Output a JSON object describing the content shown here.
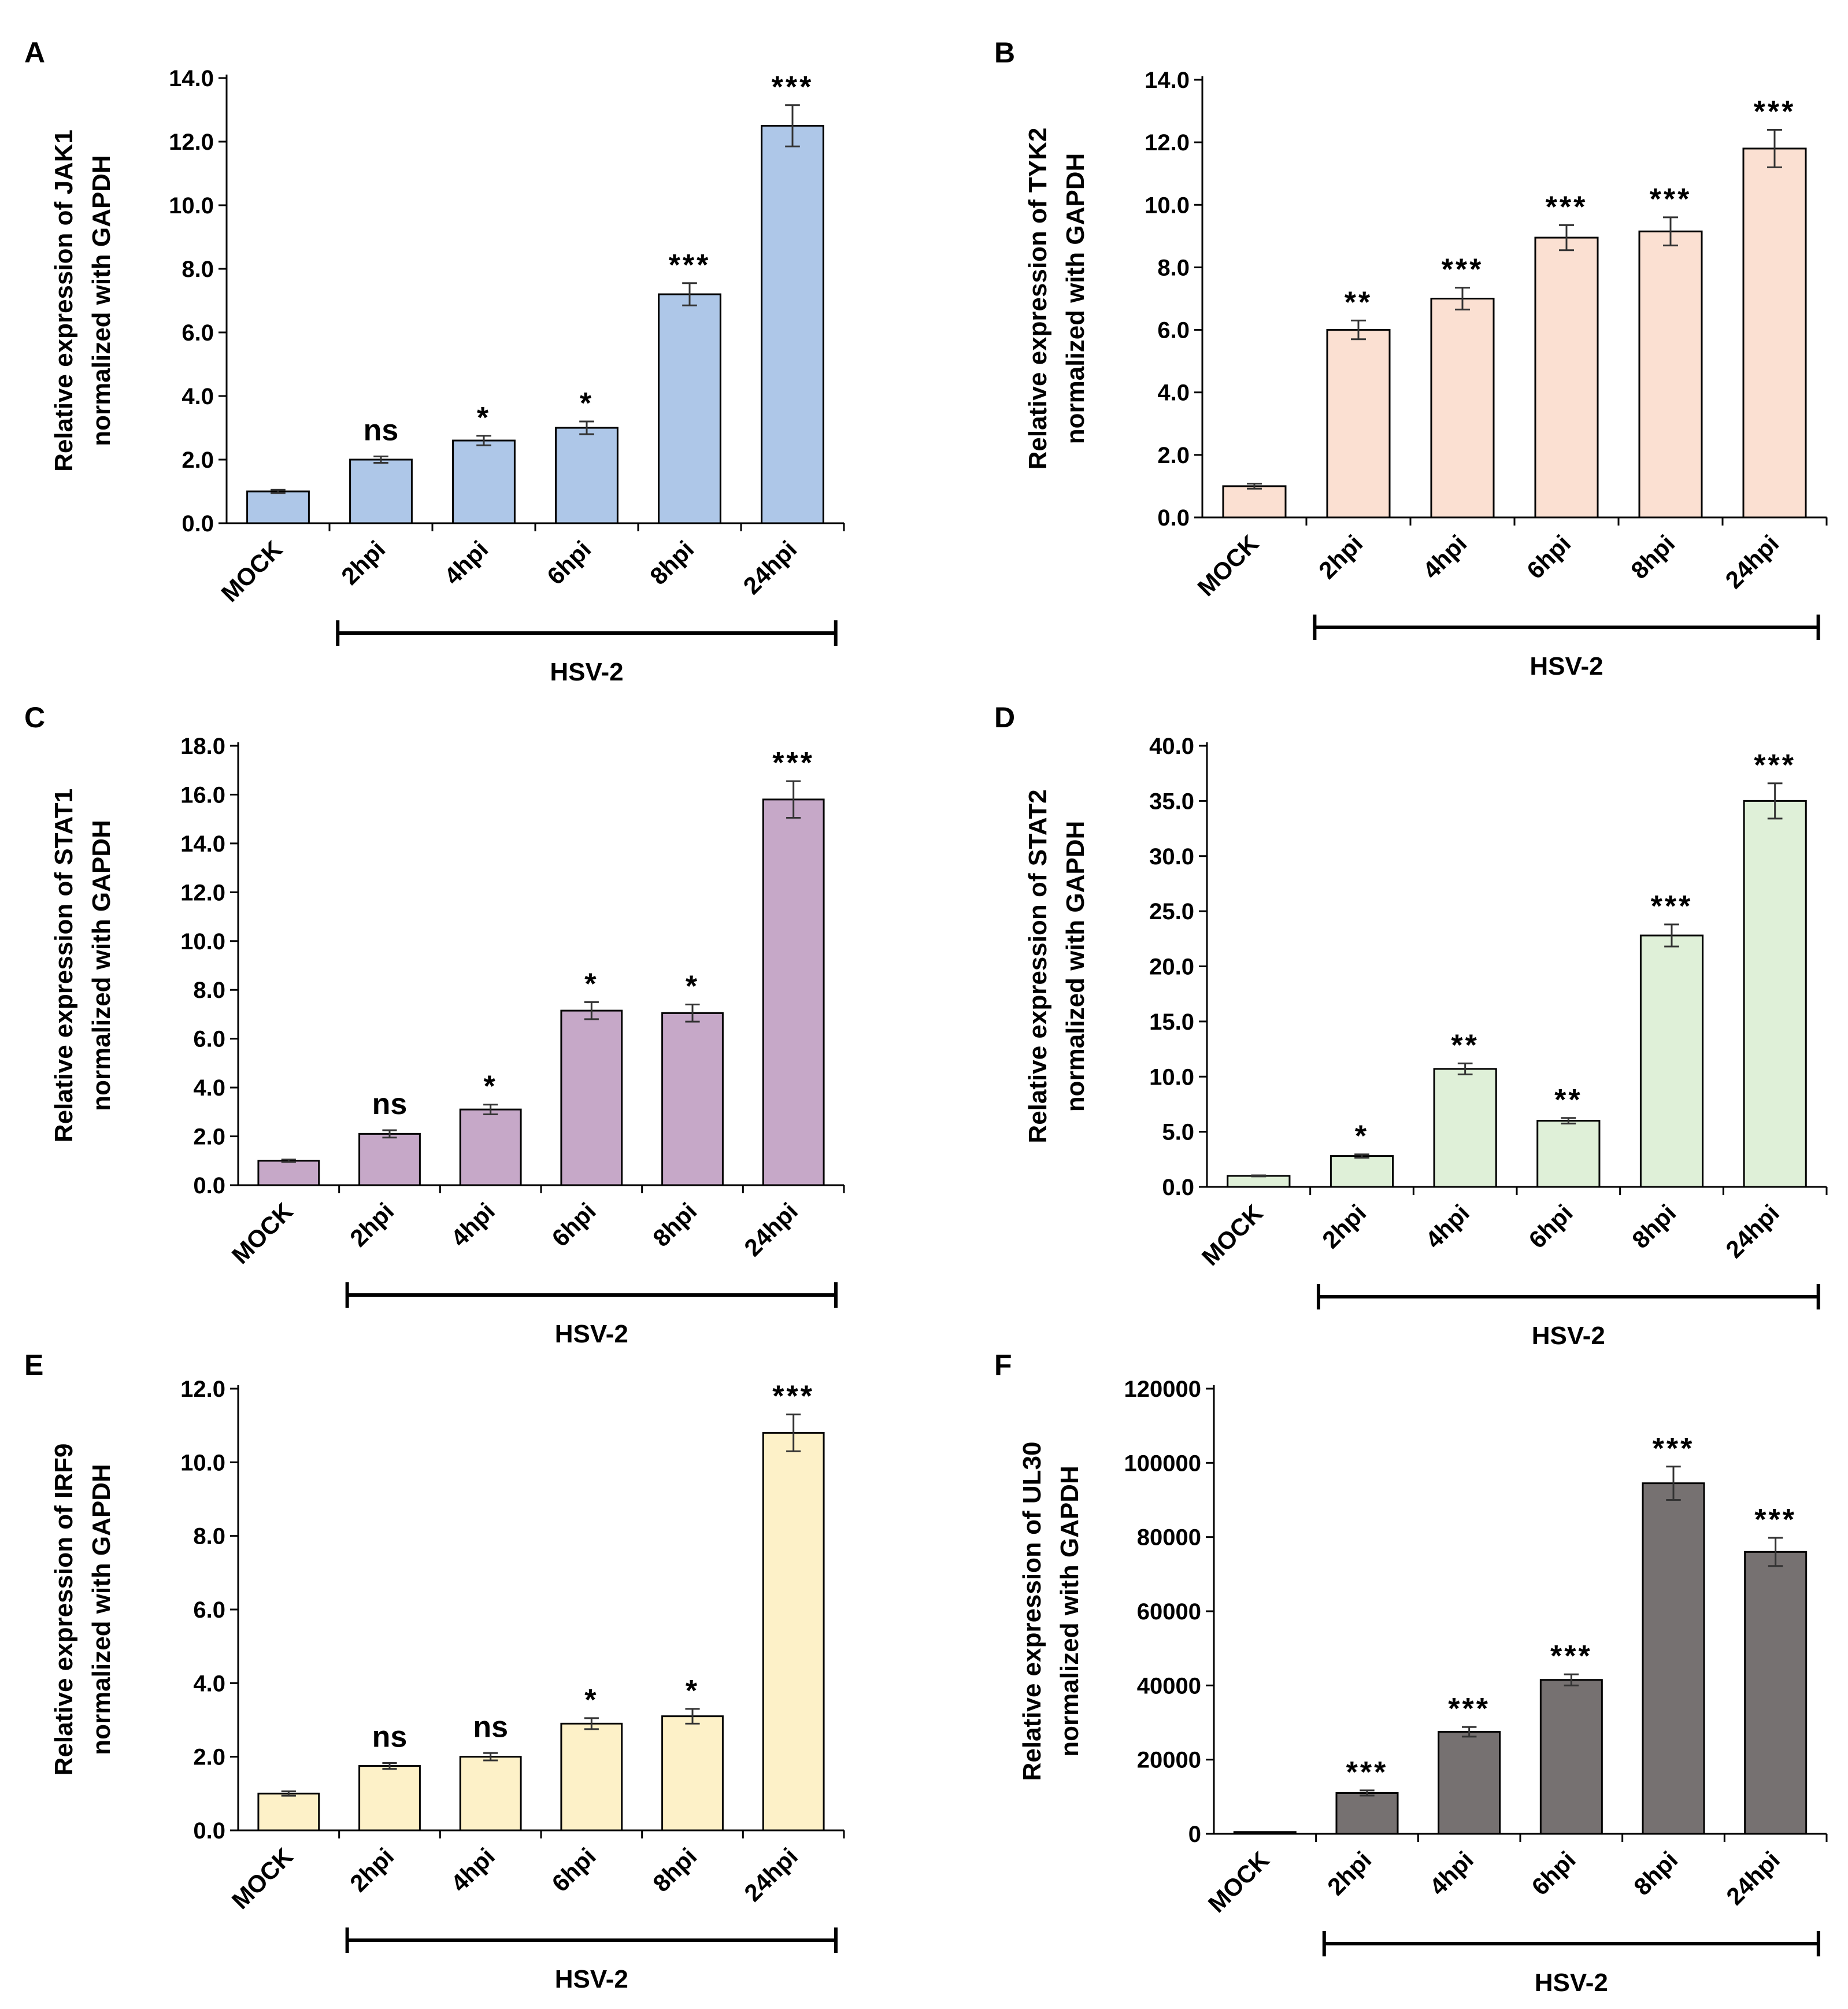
{
  "chart_data": [
    {
      "type": "bar",
      "panel": "A",
      "ylabel_line1": "Relative expression of JAK1",
      "ylabel_line2": "normalized with GAPDH",
      "categories": [
        "MOCK",
        "2hpi",
        "4hpi",
        "6hpi",
        "8hpi",
        "24hpi"
      ],
      "values": [
        1.0,
        2.0,
        2.6,
        3.0,
        7.2,
        12.5
      ],
      "errors": [
        0.05,
        0.1,
        0.15,
        0.2,
        0.35,
        0.65
      ],
      "significance": [
        "",
        "ns",
        "*",
        "*",
        "***",
        "***"
      ],
      "yticks": [
        "0.0",
        "2.0",
        "4.0",
        "6.0",
        "8.0",
        "10.0",
        "12.0",
        "14.0"
      ],
      "ylim": [
        0,
        14
      ],
      "bar_color": "#aec7e8",
      "group_label": "HSV-2"
    },
    {
      "type": "bar",
      "panel": "B",
      "ylabel_line1": "Relative expression of TYK2",
      "ylabel_line2": "normalized with GAPDH",
      "categories": [
        "MOCK",
        "2hpi",
        "4hpi",
        "6hpi",
        "8hpi",
        "24hpi"
      ],
      "values": [
        1.0,
        6.0,
        7.0,
        8.95,
        9.15,
        11.8
      ],
      "errors": [
        0.08,
        0.3,
        0.35,
        0.4,
        0.45,
        0.6
      ],
      "significance": [
        "",
        "**",
        "***",
        "***",
        "***",
        "***"
      ],
      "yticks": [
        "0.0",
        "2.0",
        "4.0",
        "6.0",
        "8.0",
        "10.0",
        "12.0",
        "14.0"
      ],
      "ylim": [
        0,
        14
      ],
      "bar_color": "#fbe0d2",
      "group_label": "HSV-2"
    },
    {
      "type": "bar",
      "panel": "C",
      "ylabel_line1": "Relative expression of STAT1",
      "ylabel_line2": "normalized with GAPDH",
      "categories": [
        "MOCK",
        "2hpi",
        "4hpi",
        "6hpi",
        "8hpi",
        "24hpi"
      ],
      "values": [
        1.0,
        2.1,
        3.1,
        7.15,
        7.05,
        15.8
      ],
      "errors": [
        0.05,
        0.15,
        0.2,
        0.35,
        0.35,
        0.75
      ],
      "significance": [
        "",
        "ns",
        "*",
        "*",
        "*",
        "***"
      ],
      "yticks": [
        "0.0",
        "2.0",
        "4.0",
        "6.0",
        "8.0",
        "10.0",
        "12.0",
        "14.0",
        "16.0",
        "18.0"
      ],
      "ylim": [
        0,
        18
      ],
      "bar_color": "#c6a8c8",
      "group_label": "HSV-2"
    },
    {
      "type": "bar",
      "panel": "D",
      "ylabel_line1": "Relative expression of STAT2",
      "ylabel_line2": "normalized with GAPDH",
      "categories": [
        "MOCK",
        "2hpi",
        "4hpi",
        "6hpi",
        "8hpi",
        "24hpi"
      ],
      "values": [
        1.0,
        2.8,
        10.7,
        6.0,
        22.8,
        35.0
      ],
      "errors": [
        0.05,
        0.15,
        0.5,
        0.25,
        1.0,
        1.6
      ],
      "significance": [
        "",
        "*",
        "**",
        "**",
        "***",
        "***"
      ],
      "yticks": [
        "0.0",
        "5.0",
        "10.0",
        "15.0",
        "20.0",
        "25.0",
        "30.0",
        "35.0",
        "40.0"
      ],
      "ylim": [
        0,
        40
      ],
      "bar_color": "#dff0d8",
      "group_label": "HSV-2"
    },
    {
      "type": "bar",
      "panel": "E",
      "ylabel_line1": "Relative expression of IRF9",
      "ylabel_line2": "normalized with GAPDH",
      "categories": [
        "MOCK",
        "2hpi",
        "4hpi",
        "6hpi",
        "8hpi",
        "24hpi"
      ],
      "values": [
        1.0,
        1.75,
        2.0,
        2.9,
        3.1,
        10.8
      ],
      "errors": [
        0.06,
        0.08,
        0.1,
        0.15,
        0.2,
        0.5
      ],
      "significance": [
        "",
        "ns",
        "ns",
        "*",
        "*",
        "***"
      ],
      "yticks": [
        "0.0",
        "2.0",
        "4.0",
        "6.0",
        "8.0",
        "10.0",
        "12.0"
      ],
      "ylim": [
        0,
        12
      ],
      "bar_color": "#fdf1c8",
      "group_label": "HSV-2"
    },
    {
      "type": "bar",
      "panel": "F",
      "ylabel_line1": "Relative expression of UL30",
      "ylabel_line2": "normalized with GAPDH",
      "categories": [
        "MOCK",
        "2hpi",
        "4hpi",
        "6hpi",
        "8hpi",
        "24hpi"
      ],
      "values": [
        500,
        11000,
        27500,
        41500,
        94500,
        76000
      ],
      "errors": [
        0,
        700,
        1300,
        1500,
        4500,
        3800
      ],
      "significance": [
        "",
        "***",
        "***",
        "***",
        "***",
        "***"
      ],
      "yticks": [
        "0",
        "20000",
        "40000",
        "60000",
        "80000",
        "100000",
        "120000"
      ],
      "ylim": [
        0,
        120000
      ],
      "bar_color": "#767171",
      "group_label": "HSV-2"
    }
  ]
}
